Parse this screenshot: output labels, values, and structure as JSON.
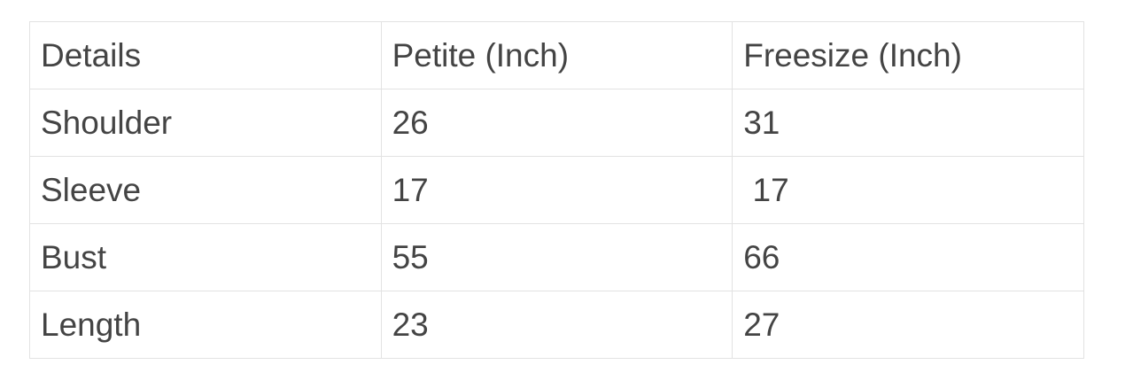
{
  "table": {
    "headers": [
      "Details",
      "Petite (Inch)",
      "Freesize (Inch)"
    ],
    "rows": [
      [
        "Shoulder",
        "26",
        "31"
      ],
      [
        "Sleeve",
        "17",
        " 17"
      ],
      [
        "Bust",
        "55",
        "66"
      ],
      [
        "Length",
        "23",
        "27"
      ]
    ]
  }
}
